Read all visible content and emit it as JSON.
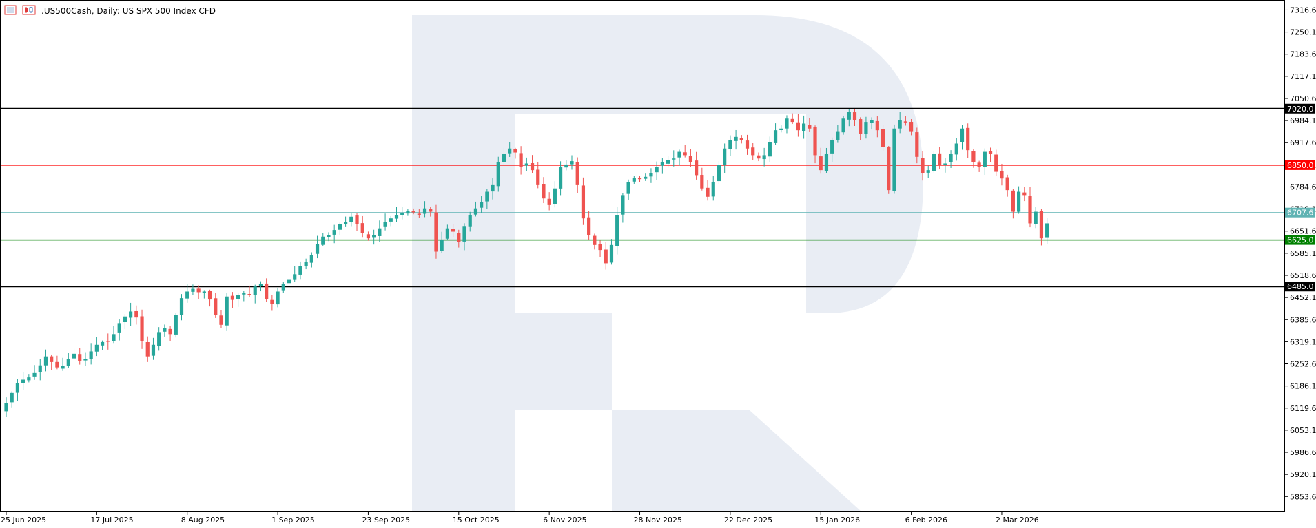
{
  "header": {
    "symbol": ".US500Cash",
    "separator": ",",
    "timeframe": "Daily",
    "description": "US SPX 500 Index CFD"
  },
  "icons": [
    "list-icon",
    "candles-icon"
  ],
  "watermark": "r-logo-watermark",
  "colors": {
    "background": "#ffffff",
    "bull": "#26a69a",
    "bear": "#ef5350",
    "frame": "#000000",
    "axis_text": "#000000",
    "watermark": "#e9edf4",
    "resistance_top": "#000000",
    "resistance": "#ff0000",
    "current": "#5fb3b3",
    "support": "#008000",
    "support_bottom": "#000000"
  },
  "chart_data": {
    "type": "candlestick",
    "y_range": [
      5790,
      7330
    ],
    "y_ticks": [
      "7316.6",
      "7250.1",
      "7183.6",
      "7117.1",
      "7050.6",
      "6984.1",
      "6917.6",
      "6851.1",
      "6784.6",
      "6718.1",
      "6651.6",
      "6585.1",
      "6518.6",
      "6452.1",
      "6385.6",
      "6319.1",
      "6252.6",
      "6186.1",
      "6119.6",
      "6053.1",
      "5986.6",
      "5920.1",
      "5853.6"
    ],
    "x_labels": [
      {
        "label": "25 Jun 2025",
        "index": 0
      },
      {
        "label": "17 Jul 2025",
        "index": 16
      },
      {
        "label": "8 Aug 2025",
        "index": 32
      },
      {
        "label": "1 Sep 2025",
        "index": 48
      },
      {
        "label": "23 Sep 2025",
        "index": 64
      },
      {
        "label": "15 Oct 2025",
        "index": 80
      },
      {
        "label": "6 Nov 2025",
        "index": 96
      },
      {
        "label": "28 Nov 2025",
        "index": 112
      },
      {
        "label": "22 Dec 2025",
        "index": 128
      },
      {
        "label": "15 Jan 2026",
        "index": 144
      },
      {
        "label": "6 Feb 2026",
        "index": 160
      },
      {
        "label": "2 Mar 2026",
        "index": 176
      }
    ],
    "levels": [
      {
        "price": 7020.0,
        "label": "7020.0",
        "color": "#000000",
        "width": 2,
        "label_bg": "#000000",
        "label_fg": "#ffffff"
      },
      {
        "price": 6850.0,
        "label": "6850.0",
        "color": "#ff0000",
        "width": 1.5,
        "label_bg": "#ff0000",
        "label_fg": "#ffffff"
      },
      {
        "price": 6707.6,
        "label": "6707.6",
        "color": "#5fb3b3",
        "width": 1,
        "label_bg": "#5fb3b3",
        "label_fg": "#ffffff"
      },
      {
        "price": 6625.0,
        "label": "6625.0",
        "color": "#008000",
        "width": 1.5,
        "label_bg": "#008000",
        "label_fg": "#ffffff"
      },
      {
        "price": 6485.0,
        "label": "6485.0",
        "color": "#000000",
        "width": 2,
        "label_bg": "#000000",
        "label_fg": "#ffffff"
      }
    ],
    "closes": [
      6135,
      6165,
      6195,
      6205,
      6212,
      6225,
      6248,
      6275,
      6258,
      6242,
      6246,
      6268,
      6283,
      6260,
      6268,
      6290,
      6310,
      6318,
      6320,
      6342,
      6375,
      6395,
      6410,
      6392,
      6320,
      6275,
      6310,
      6346,
      6360,
      6342,
      6400,
      6450,
      6470,
      6478,
      6468,
      6470,
      6446,
      6400,
      6370,
      6455,
      6445,
      6460,
      6466,
      6460,
      6485,
      6492,
      6448,
      6432,
      6470,
      6492,
      6505,
      6522,
      6546,
      6560,
      6580,
      6612,
      6635,
      6640,
      6655,
      6672,
      6680,
      6695,
      6672,
      6645,
      6630,
      6640,
      6660,
      6680,
      6690,
      6700,
      6705,
      6712,
      6708,
      6702,
      6720,
      6710,
      6590,
      6625,
      6660,
      6650,
      6620,
      6665,
      6700,
      6720,
      6740,
      6770,
      6790,
      6860,
      6885,
      6900,
      6888,
      6845,
      6855,
      6835,
      6790,
      6750,
      6730,
      6780,
      6845,
      6852,
      6862,
      6790,
      6690,
      6640,
      6610,
      6595,
      6555,
      6610,
      6700,
      6760,
      6800,
      6812,
      6808,
      6815,
      6825,
      6845,
      6858,
      6865,
      6870,
      6890,
      6880,
      6860,
      6820,
      6780,
      6755,
      6800,
      6850,
      6900,
      6925,
      6935,
      6925,
      6900,
      6880,
      6870,
      6880,
      6920,
      6955,
      6960,
      6990,
      6980,
      6955,
      6975,
      6960,
      6880,
      6835,
      6885,
      6925,
      6950,
      6990,
      7010,
      6985,
      6945,
      6980,
      6985,
      6955,
      6905,
      6775,
      6960,
      6985,
      6980,
      6950,
      6875,
      6825,
      6835,
      6885,
      6850,
      6855,
      6885,
      6915,
      6960,
      6895,
      6860,
      6845,
      6890,
      6885,
      6830,
      6810,
      6775,
      6710,
      6770,
      6760,
      6675,
      6710,
      6630,
      6675
    ],
    "series": [
      {
        "name": ".US500Cash",
        "values": "closes"
      }
    ]
  }
}
